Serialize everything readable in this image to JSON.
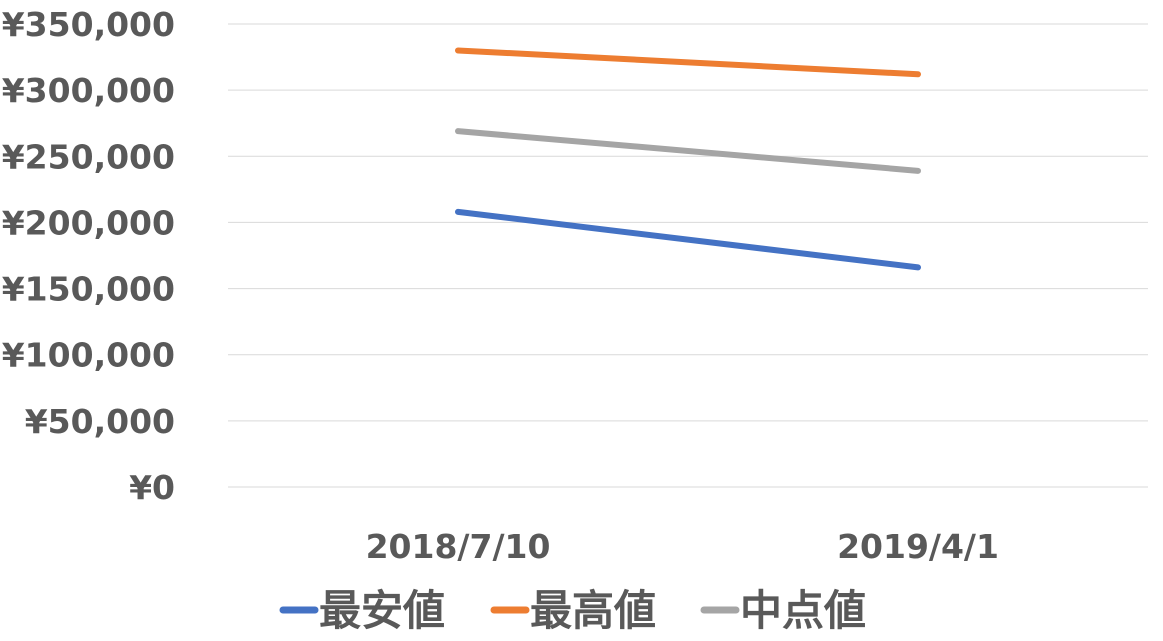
{
  "chart_data": {
    "type": "line",
    "title": "",
    "xlabel": "",
    "ylabel": "",
    "categories": [
      "2018/7/10",
      "2019/4/1"
    ],
    "y_tick_labels": [
      "¥0",
      "¥50,000",
      "¥100,000",
      "¥150,000",
      "¥200,000",
      "¥250,000",
      "¥300,000",
      "¥350,000"
    ],
    "y_ticks": [
      0,
      50000,
      100000,
      150000,
      200000,
      250000,
      300000,
      350000
    ],
    "ylim": [
      0,
      350000
    ],
    "grid": "horizontal",
    "legend_position": "bottom",
    "series": [
      {
        "name": "最安値",
        "color": "#4472C4",
        "values": [
          208000,
          166000
        ]
      },
      {
        "name": "最高値",
        "color": "#ED7D31",
        "values": [
          330000,
          312000
        ]
      },
      {
        "name": "中点値",
        "color": "#A5A5A5",
        "values": [
          269000,
          239000
        ]
      }
    ]
  }
}
